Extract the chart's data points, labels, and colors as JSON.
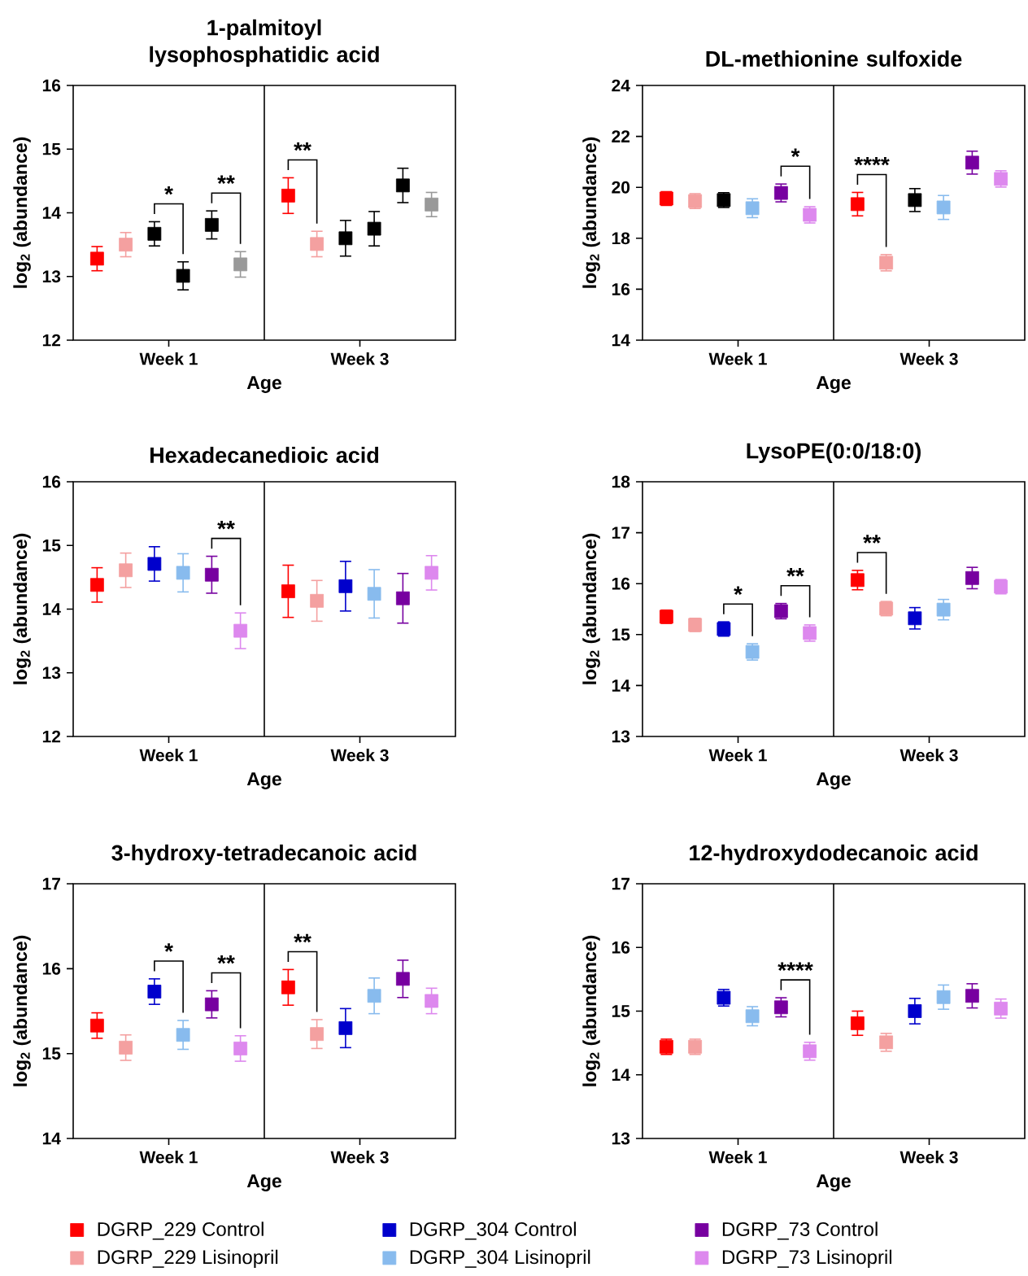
{
  "chart_data": [
    {
      "type": "scatter",
      "title": "1-palmitoyl lysophosphatidic acid",
      "xlabel": "Age",
      "ylabel": "log$_{2}$ (abundance)",
      "categories": [
        "Week 1",
        "Week 3"
      ],
      "ylim": [
        12,
        16
      ],
      "yticks": [
        12,
        13,
        14,
        15,
        16
      ],
      "marker": "square",
      "annotations": [
        "*",
        "**",
        "**"
      ],
      "series": [
        {
          "color": "#ff0000",
          "values": [
            13.28,
            14.27
          ],
          "errors": [
            0.19,
            0.28
          ]
        },
        {
          "color": "#f4a0a0",
          "values": [
            13.5,
            13.51
          ],
          "errors": [
            0.19,
            0.2
          ]
        },
        {
          "color": "#000000",
          "values": [
            13.67,
            13.6
          ],
          "errors": [
            0.19,
            0.28
          ]
        },
        {
          "color": "#000000",
          "values": [
            13.01,
            13.75
          ],
          "errors": [
            0.22,
            0.27
          ]
        },
        {
          "color": "#000000",
          "values": [
            13.81,
            14.43
          ],
          "errors": [
            0.22,
            0.27
          ]
        },
        {
          "color": "#999999",
          "values": [
            13.19,
            14.13
          ],
          "errors": [
            0.2,
            0.19
          ]
        }
      ]
    },
    {
      "type": "scatter",
      "title": "DL-methionine sulfoxide",
      "xlabel": "Age",
      "ylabel": "log$_{2}$ (abundance)",
      "categories": [
        "Week 1",
        "Week 3"
      ],
      "ylim": [
        14,
        24
      ],
      "yticks": [
        14,
        16,
        18,
        20,
        22,
        24
      ],
      "marker": "square",
      "annotations": [
        "*",
        "****"
      ],
      "series": [
        {
          "color": "#ff0000",
          "values": [
            19.56,
            19.34
          ],
          "errors": [
            0.27,
            0.46
          ]
        },
        {
          "color": "#f4a0a0",
          "values": [
            19.46,
            17.04
          ],
          "errors": [
            0.29,
            0.32
          ]
        },
        {
          "color": "#000000",
          "values": [
            19.5,
            19.5
          ],
          "errors": [
            0.29,
            0.45
          ]
        },
        {
          "color": "#88bbee",
          "values": [
            19.18,
            19.21
          ],
          "errors": [
            0.37,
            0.47
          ]
        },
        {
          "color": "#7700a0",
          "values": [
            19.78,
            20.97
          ],
          "errors": [
            0.35,
            0.45
          ]
        },
        {
          "color": "#dd88ee",
          "values": [
            18.92,
            20.33
          ],
          "errors": [
            0.32,
            0.32
          ]
        }
      ]
    },
    {
      "type": "scatter",
      "title": "Hexadecanedioic acid",
      "xlabel": "Age",
      "ylabel": "log$_{2}$ (abundance)",
      "categories": [
        "Week 1",
        "Week 3"
      ],
      "ylim": [
        12,
        16
      ],
      "yticks": [
        12,
        13,
        14,
        15,
        16
      ],
      "marker": "square",
      "annotations": [
        "**"
      ],
      "series": [
        {
          "color": "#ff0000",
          "values": [
            14.38,
            14.28
          ],
          "errors": [
            0.27,
            0.41
          ]
        },
        {
          "color": "#f4a0a0",
          "values": [
            14.61,
            14.13
          ],
          "errors": [
            0.27,
            0.32
          ]
        },
        {
          "color": "#0000cc",
          "values": [
            14.71,
            14.36
          ],
          "errors": [
            0.27,
            0.39
          ]
        },
        {
          "color": "#88bbee",
          "values": [
            14.57,
            14.24
          ],
          "errors": [
            0.3,
            0.38
          ]
        },
        {
          "color": "#7700a0",
          "values": [
            14.54,
            14.17
          ],
          "errors": [
            0.29,
            0.39
          ]
        },
        {
          "color": "#dd88ee",
          "values": [
            13.66,
            14.57
          ],
          "errors": [
            0.28,
            0.27
          ]
        }
      ]
    },
    {
      "type": "scatter",
      "title": "LysoPE(0:0/18:0)",
      "xlabel": "Age",
      "ylabel": "log$_{2}$ (abundance)",
      "categories": [
        "Week 1",
        "Week 3"
      ],
      "ylim": [
        13,
        18
      ],
      "yticks": [
        13,
        14,
        15,
        16,
        17,
        18
      ],
      "marker": "square",
      "annotations": [
        "*",
        "**",
        "**"
      ],
      "series": [
        {
          "color": "#ff0000",
          "values": [
            15.35,
            16.07
          ],
          "errors": [
            0.13,
            0.19
          ]
        },
        {
          "color": "#f4a0a0",
          "values": [
            15.19,
            15.51
          ],
          "errors": [
            0.13,
            0.14
          ]
        },
        {
          "color": "#0000cc",
          "values": [
            15.11,
            15.32
          ],
          "errors": [
            0.14,
            0.21
          ]
        },
        {
          "color": "#88bbee",
          "values": [
            14.66,
            15.49
          ],
          "errors": [
            0.16,
            0.2
          ]
        },
        {
          "color": "#7700a0",
          "values": [
            15.46,
            16.11
          ],
          "errors": [
            0.15,
            0.21
          ]
        },
        {
          "color": "#dd88ee",
          "values": [
            15.03,
            15.94
          ],
          "errors": [
            0.16,
            0.14
          ]
        }
      ]
    },
    {
      "type": "scatter",
      "title": "3-hydroxy-tetradecanoic acid",
      "xlabel": "Age",
      "ylabel": "log$_{2}$ (abundance)",
      "categories": [
        "Week 1",
        "Week 3"
      ],
      "ylim": [
        14,
        17
      ],
      "yticks": [
        14,
        15,
        16,
        17
      ],
      "marker": "square",
      "annotations": [
        "*",
        "**",
        "**"
      ],
      "series": [
        {
          "color": "#ff0000",
          "values": [
            15.33,
            15.78
          ],
          "errors": [
            0.15,
            0.21
          ]
        },
        {
          "color": "#f4a0a0",
          "values": [
            15.07,
            15.23
          ],
          "errors": [
            0.15,
            0.17
          ]
        },
        {
          "color": "#0000cc",
          "values": [
            15.73,
            15.3
          ],
          "errors": [
            0.15,
            0.23
          ]
        },
        {
          "color": "#88bbee",
          "values": [
            15.22,
            15.68
          ],
          "errors": [
            0.17,
            0.21
          ]
        },
        {
          "color": "#7700a0",
          "values": [
            15.58,
            15.88
          ],
          "errors": [
            0.16,
            0.22
          ]
        },
        {
          "color": "#dd88ee",
          "values": [
            15.06,
            15.62
          ],
          "errors": [
            0.15,
            0.15
          ]
        }
      ]
    },
    {
      "type": "scatter",
      "title": "12-hydroxydodecanoic acid",
      "xlabel": "Age",
      "ylabel": "log$_{2}$ (abundance)",
      "categories": [
        "Week 1",
        "Week 3"
      ],
      "ylim": [
        13,
        17
      ],
      "yticks": [
        13,
        14,
        15,
        16,
        17
      ],
      "marker": "square",
      "legend": "bottom",
      "annotations": [
        "****"
      ],
      "series": [
        {
          "name": "DGRP_229 Control",
          "color": "#ff0000",
          "values": [
            14.44,
            14.81
          ],
          "errors": [
            0.12,
            0.19
          ]
        },
        {
          "name": "DGRP_229 Lisinopril",
          "color": "#f4a0a0",
          "values": [
            14.44,
            14.51
          ],
          "errors": [
            0.12,
            0.14
          ]
        },
        {
          "name": "DGRP_304 Control",
          "color": "#0000cc",
          "values": [
            15.21,
            15.0
          ],
          "errors": [
            0.13,
            0.2
          ]
        },
        {
          "name": "DGRP_304 Lisinopril",
          "color": "#88bbee",
          "values": [
            14.92,
            15.22
          ],
          "errors": [
            0.15,
            0.19
          ]
        },
        {
          "name": "DGRP_73 Control",
          "color": "#7700a0",
          "values": [
            15.06,
            15.24
          ],
          "errors": [
            0.15,
            0.19
          ]
        },
        {
          "name": "DGRP_73 Lisinopril",
          "color": "#dd88ee",
          "values": [
            14.37,
            15.04
          ],
          "errors": [
            0.14,
            0.15
          ]
        }
      ]
    }
  ]
}
